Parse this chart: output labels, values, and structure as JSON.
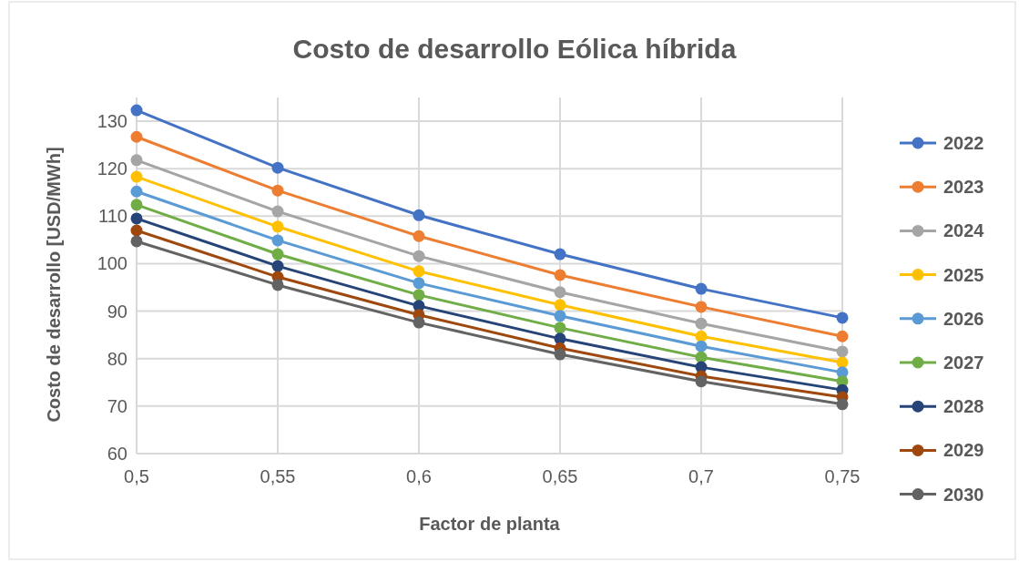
{
  "chart_data": {
    "type": "line",
    "title": "Costo de desarrollo Eólica híbrida",
    "xlabel": "Factor de planta",
    "ylabel": "Costo de desarrollo [USD/MWh]",
    "x": [
      0.5,
      0.55,
      0.6,
      0.65,
      0.7,
      0.75
    ],
    "xlim": [
      0.5,
      0.75
    ],
    "xticks": [
      {
        "value": 0.5,
        "label": "0,5"
      },
      {
        "value": 0.55,
        "label": "0,55"
      },
      {
        "value": 0.6,
        "label": "0,6"
      },
      {
        "value": 0.65,
        "label": "0,65"
      },
      {
        "value": 0.7,
        "label": "0,7"
      },
      {
        "value": 0.75,
        "label": "0,75"
      }
    ],
    "ylim": [
      60,
      135
    ],
    "yticks": [
      60,
      70,
      80,
      90,
      100,
      110,
      120,
      130
    ],
    "grid": true,
    "legend": "right",
    "marker": "circle",
    "series": [
      {
        "name": "2022",
        "color": "#4472c4",
        "values": [
          132.3,
          120.2,
          110.2,
          102,
          94.7,
          88.6
        ]
      },
      {
        "name": "2023",
        "color": "#ed7d31",
        "values": [
          126.7,
          115.4,
          105.8,
          97.6,
          90.9,
          84.7
        ]
      },
      {
        "name": "2024",
        "color": "#a5a5a5",
        "values": [
          121.8,
          111,
          101.6,
          94,
          87.4,
          81.5
        ]
      },
      {
        "name": "2025",
        "color": "#ffc000",
        "values": [
          118.3,
          107.8,
          98.4,
          91.3,
          84.7,
          79.2
        ]
      },
      {
        "name": "2026",
        "color": "#5b9bd5",
        "values": [
          115.2,
          104.9,
          95.9,
          89,
          82.6,
          77.1
        ]
      },
      {
        "name": "2027",
        "color": "#70ad47",
        "values": [
          112.4,
          102,
          93.4,
          86.5,
          80.3,
          75.2
        ]
      },
      {
        "name": "2028",
        "color": "#264478",
        "values": [
          109.5,
          99.5,
          91.1,
          84.2,
          78.2,
          73.4
        ]
      },
      {
        "name": "2029",
        "color": "#9e480e",
        "values": [
          107,
          97.2,
          89.2,
          82.2,
          76.3,
          71.9
        ]
      },
      {
        "name": "2030",
        "color": "#636363",
        "values": [
          104.7,
          95.5,
          87.6,
          80.9,
          75.2,
          70.4
        ]
      }
    ]
  }
}
